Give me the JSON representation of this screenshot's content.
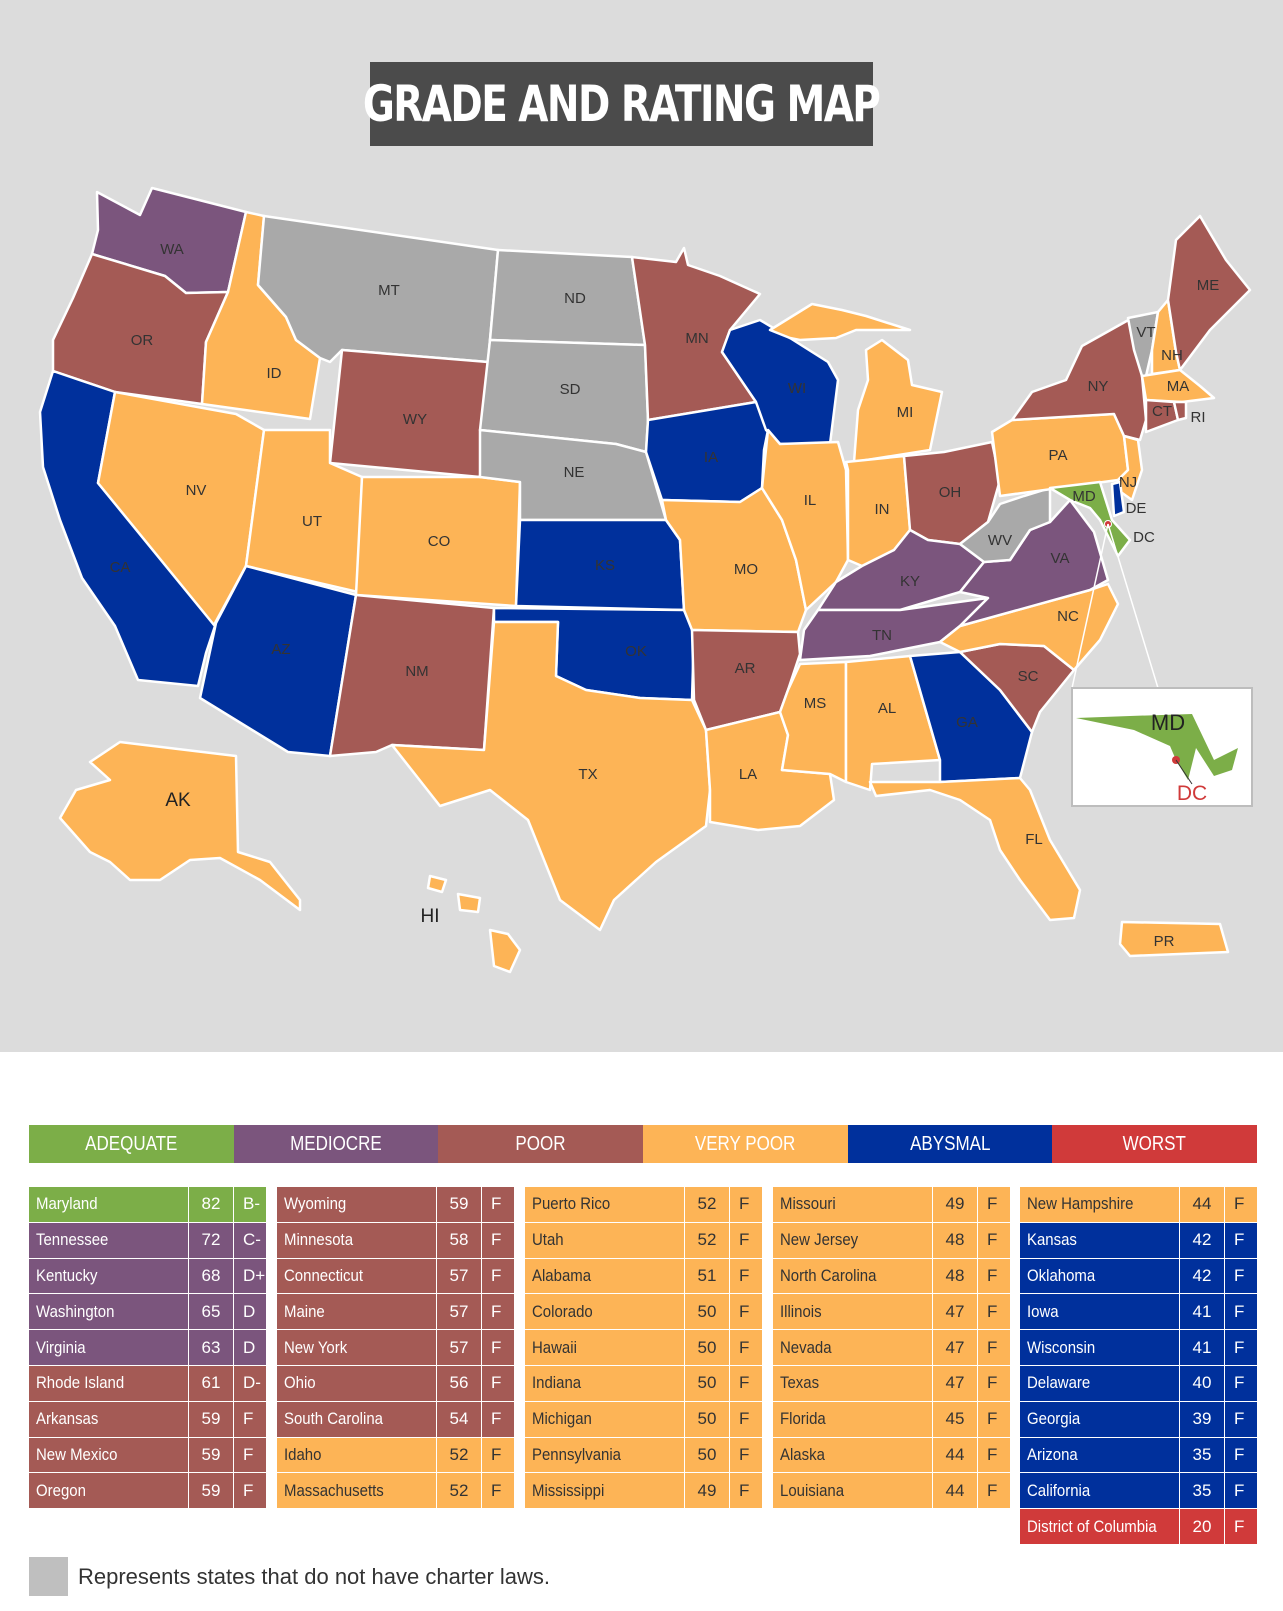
{
  "title": "GRADE AND RATING MAP",
  "colors": {
    "adequate": "#7cae48",
    "mediocre": "#7b557d",
    "poor": "#a45a55",
    "very_poor": "#fdb456",
    "abysmal": "#00309c",
    "worst": "#d03a3a",
    "no_charter_law": "#a9a9a9"
  },
  "legend": [
    {
      "label": "ADEQUATE",
      "color": "#7cae48"
    },
    {
      "label": "MEDIOCRE",
      "color": "#7b557d"
    },
    {
      "label": "POOR",
      "color": "#a45a55"
    },
    {
      "label": "VERY POOR",
      "color": "#fdb456"
    },
    {
      "label": "ABYSMAL",
      "color": "#00309c"
    },
    {
      "label": "WORST",
      "color": "#d03a3a"
    }
  ],
  "map_labels": {
    "WA": "WA",
    "OR": "OR",
    "CA": "CA",
    "ID": "ID",
    "NV": "NV",
    "MT": "MT",
    "WY": "WY",
    "UT": "UT",
    "AZ": "AZ",
    "CO": "CO",
    "NM": "NM",
    "ND": "ND",
    "SD": "SD",
    "NE": "NE",
    "KS": "KS",
    "OK": "OK",
    "TX": "TX",
    "MN": "MN",
    "IA": "IA",
    "MO": "MO",
    "AR": "AR",
    "LA": "LA",
    "WI": "WI",
    "IL": "IL",
    "MI": "MI",
    "IN": "IN",
    "OH": "OH",
    "KY": "KY",
    "TN": "TN",
    "MS": "MS",
    "AL": "AL",
    "GA": "GA",
    "FL": "FL",
    "SC": "SC",
    "NC": "NC",
    "VA": "VA",
    "WV": "WV",
    "PA": "PA",
    "NY": "NY",
    "VT": "VT",
    "NH": "NH",
    "ME": "ME",
    "MA": "MA",
    "RI": "RI",
    "CT": "CT",
    "NJ": "NJ",
    "DE": "DE",
    "MD": "MD",
    "DC": "DC",
    "AK": "AK",
    "HI": "HI",
    "PR": "PR"
  },
  "inset": {
    "state_label": "MD",
    "district_label": "DC"
  },
  "table_columns": [
    [
      {
        "state": "Maryland",
        "score": "82",
        "grade": "B-",
        "category": "adequate"
      },
      {
        "state": "Tennessee",
        "score": "72",
        "grade": "C-",
        "category": "mediocre"
      },
      {
        "state": "Kentucky",
        "score": "68",
        "grade": "D+",
        "category": "mediocre"
      },
      {
        "state": "Washington",
        "score": "65",
        "grade": "D",
        "category": "mediocre"
      },
      {
        "state": "Virginia",
        "score": "63",
        "grade": "D",
        "category": "mediocre"
      },
      {
        "state": "Rhode Island",
        "score": "61",
        "grade": "D-",
        "category": "poor"
      },
      {
        "state": "Arkansas",
        "score": "59",
        "grade": "F",
        "category": "poor"
      },
      {
        "state": "New Mexico",
        "score": "59",
        "grade": "F",
        "category": "poor"
      },
      {
        "state": "Oregon",
        "score": "59",
        "grade": "F",
        "category": "poor"
      }
    ],
    [
      {
        "state": "Wyoming",
        "score": "59",
        "grade": "F",
        "category": "poor"
      },
      {
        "state": "Minnesota",
        "score": "58",
        "grade": "F",
        "category": "poor"
      },
      {
        "state": "Connecticut",
        "score": "57",
        "grade": "F",
        "category": "poor"
      },
      {
        "state": "Maine",
        "score": "57",
        "grade": "F",
        "category": "poor"
      },
      {
        "state": "New York",
        "score": "57",
        "grade": "F",
        "category": "poor"
      },
      {
        "state": "Ohio",
        "score": "56",
        "grade": "F",
        "category": "poor"
      },
      {
        "state": "South Carolina",
        "score": "54",
        "grade": "F",
        "category": "poor"
      },
      {
        "state": "Idaho",
        "score": "52",
        "grade": "F",
        "category": "very_poor"
      },
      {
        "state": "Massachusetts",
        "score": "52",
        "grade": "F",
        "category": "very_poor"
      }
    ],
    [
      {
        "state": "Puerto Rico",
        "score": "52",
        "grade": "F",
        "category": "very_poor"
      },
      {
        "state": "Utah",
        "score": "52",
        "grade": "F",
        "category": "very_poor"
      },
      {
        "state": "Alabama",
        "score": "51",
        "grade": "F",
        "category": "very_poor"
      },
      {
        "state": "Colorado",
        "score": "50",
        "grade": "F",
        "category": "very_poor"
      },
      {
        "state": "Hawaii",
        "score": "50",
        "grade": "F",
        "category": "very_poor"
      },
      {
        "state": "Indiana",
        "score": "50",
        "grade": "F",
        "category": "very_poor"
      },
      {
        "state": "Michigan",
        "score": "50",
        "grade": "F",
        "category": "very_poor"
      },
      {
        "state": "Pennsylvania",
        "score": "50",
        "grade": "F",
        "category": "very_poor"
      },
      {
        "state": "Mississippi",
        "score": "49",
        "grade": "F",
        "category": "very_poor"
      }
    ],
    [
      {
        "state": "Missouri",
        "score": "49",
        "grade": "F",
        "category": "very_poor"
      },
      {
        "state": "New Jersey",
        "score": "48",
        "grade": "F",
        "category": "very_poor"
      },
      {
        "state": "North Carolina",
        "score": "48",
        "grade": "F",
        "category": "very_poor"
      },
      {
        "state": "Illinois",
        "score": "47",
        "grade": "F",
        "category": "very_poor"
      },
      {
        "state": "Nevada",
        "score": "47",
        "grade": "F",
        "category": "very_poor"
      },
      {
        "state": "Texas",
        "score": "47",
        "grade": "F",
        "category": "very_poor"
      },
      {
        "state": "Florida",
        "score": "45",
        "grade": "F",
        "category": "very_poor"
      },
      {
        "state": "Alaska",
        "score": "44",
        "grade": "F",
        "category": "very_poor"
      },
      {
        "state": "Louisiana",
        "score": "44",
        "grade": "F",
        "category": "very_poor"
      }
    ],
    [
      {
        "state": "New Hampshire",
        "score": "44",
        "grade": "F",
        "category": "very_poor"
      },
      {
        "state": "Kansas",
        "score": "42",
        "grade": "F",
        "category": "abysmal"
      },
      {
        "state": "Oklahoma",
        "score": "42",
        "grade": "F",
        "category": "abysmal"
      },
      {
        "state": "Iowa",
        "score": "41",
        "grade": "F",
        "category": "abysmal"
      },
      {
        "state": "Wisconsin",
        "score": "41",
        "grade": "F",
        "category": "abysmal"
      },
      {
        "state": "Delaware",
        "score": "40",
        "grade": "F",
        "category": "abysmal"
      },
      {
        "state": "Georgia",
        "score": "39",
        "grade": "F",
        "category": "abysmal"
      },
      {
        "state": "Arizona",
        "score": "35",
        "grade": "F",
        "category": "abysmal"
      },
      {
        "state": "California",
        "score": "35",
        "grade": "F",
        "category": "abysmal"
      },
      {
        "state": "District of Columbia",
        "score": "20",
        "grade": "F",
        "category": "worst"
      }
    ]
  ],
  "footnote": "Represents states that do not have charter laws."
}
